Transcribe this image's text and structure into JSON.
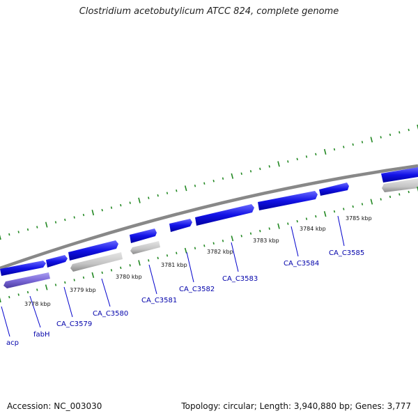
{
  "title": "Clostridium acetobutylicum ATCC 824, complete genome",
  "footer": {
    "accession": "Accession: NC_003030",
    "topology": "Topology: circular; Length: 3,940,880 bp; Genes: 3,777"
  },
  "colors": {
    "backbone": "#808080",
    "gene_forward": "#1010e0",
    "gene_gray": "#c0c0c0",
    "gene_purple": "#7b68d8",
    "ticks": "#228822",
    "label": "#0000aa"
  },
  "kbp_labels": [
    "3778 kbp",
    "3779 kbp",
    "3780 kbp",
    "3781 kbp",
    "3782 kbp",
    "3783 kbp",
    "3784 kbp",
    "3785 kbp"
  ],
  "gene_labels": [
    "acp",
    "fabH",
    "CA_C3579",
    "CA_C3580",
    "CA_C3581",
    "CA_C3582",
    "CA_C3583",
    "CA_C3584",
    "CA_C3585"
  ]
}
